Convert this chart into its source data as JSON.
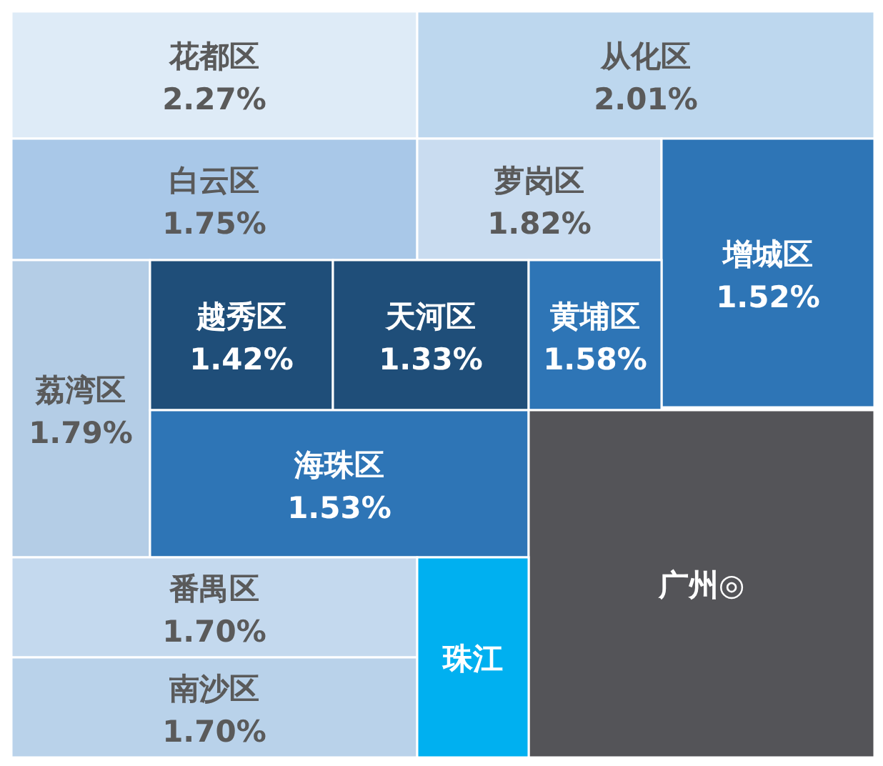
{
  "chart_data": {
    "type": "other",
    "categories": [
      "花都区",
      "从化区",
      "白云区",
      "萝岗区",
      "增城区",
      "荔湾区",
      "越秀区",
      "天河区",
      "黄埔区",
      "海珠区",
      "广州◎",
      "番禺区",
      "南沙区",
      "珠江"
    ],
    "values": [
      2.27,
      2.01,
      1.75,
      1.82,
      1.52,
      1.79,
      1.42,
      1.33,
      1.58,
      1.53,
      null,
      1.7,
      1.7,
      null
    ],
    "value_labels": [
      "2.27%",
      "2.01%",
      "1.75%",
      "1.82%",
      "1.52%",
      "1.79%",
      "1.42%",
      "1.33%",
      "1.58%",
      "1.53%",
      null,
      "1.70%",
      "1.70%",
      null
    ],
    "colors": [
      "#deebf7",
      "#bdd7ee",
      "#a9c8e8",
      "#c9dcf0",
      "#2e75b6",
      "#b4cde6",
      "#1f4e79",
      "#1f4e79",
      "#2e75b6",
      "#2e75b6",
      "#545458",
      "#c4d9ee",
      "#b9d2ea",
      "#00b0f0"
    ]
  }
}
